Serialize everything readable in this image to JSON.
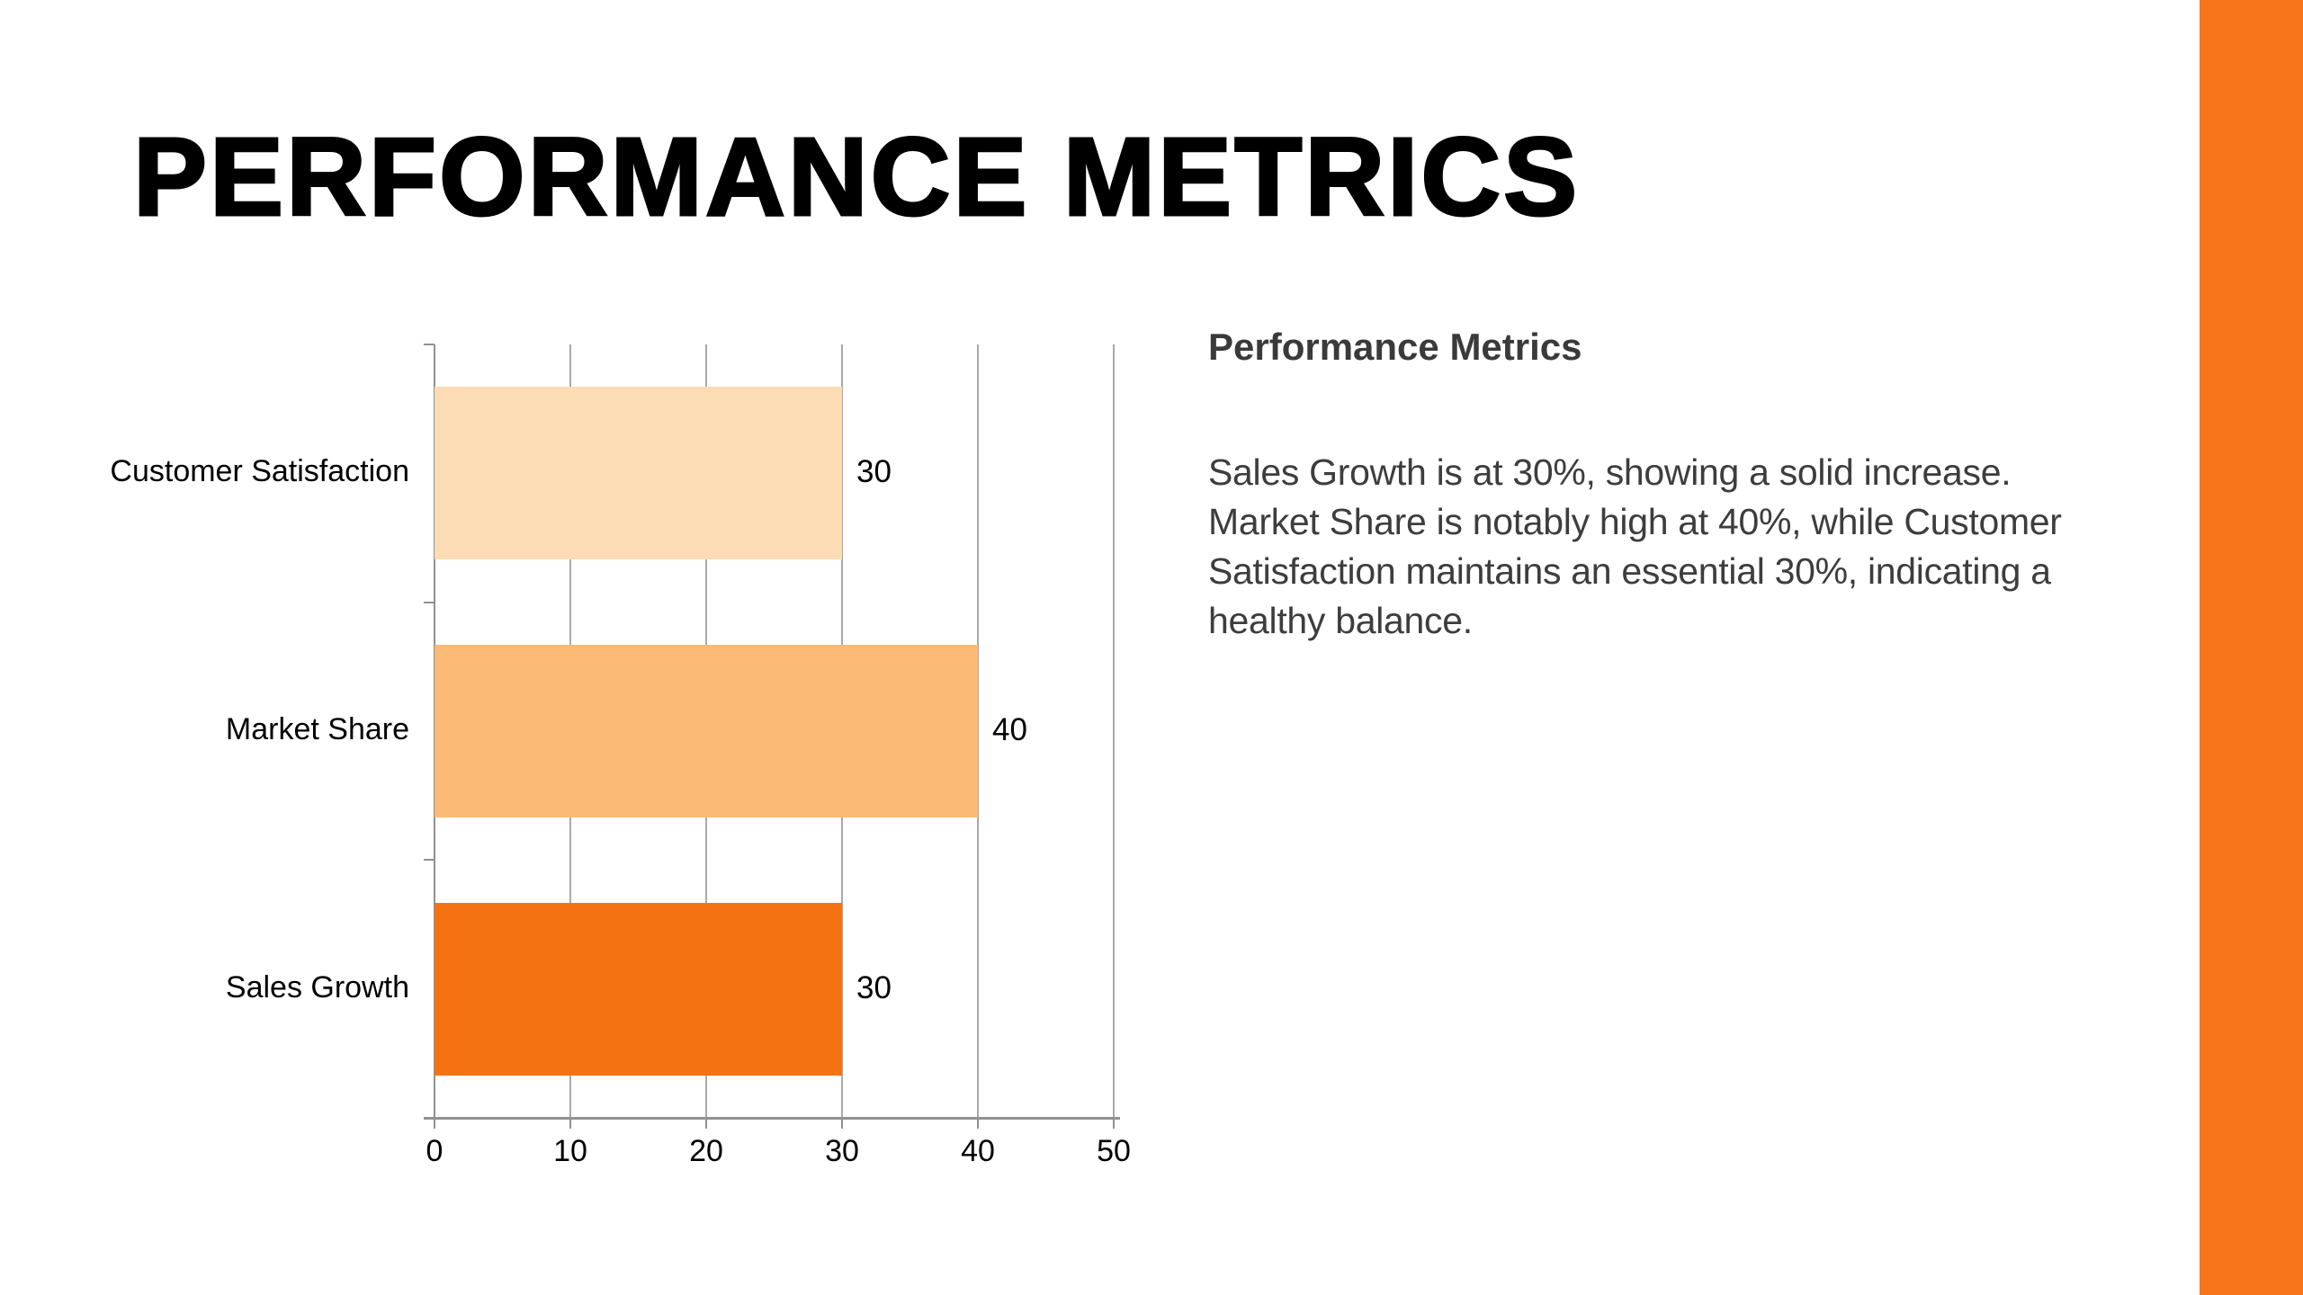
{
  "slide": {
    "title": "PERFORMANCE METRICS"
  },
  "chart_data": {
    "type": "bar",
    "orientation": "horizontal",
    "title": "",
    "xlabel": "",
    "ylabel": "",
    "categories": [
      "Customer Satisfaction",
      "Market Share",
      "Sales Growth"
    ],
    "values": [
      30,
      40,
      30
    ],
    "data_labels": [
      "30",
      "40",
      "30"
    ],
    "bar_colors": [
      "#FCDCB5",
      "#FBBA75",
      "#F57212"
    ],
    "x_ticks": [
      "0",
      "10",
      "20",
      "30",
      "40",
      "50"
    ],
    "xlim": [
      0,
      50
    ],
    "grid": true,
    "gridline_color": "#A9A9A9",
    "legend": "none"
  },
  "text_panel": {
    "heading": "Performance Metrics",
    "paragraph_lines": [
      "Sales Growth is at 30%, showing a solid increase.",
      "Market Share is notably high at 40%, while Customer",
      "Satisfaction maintains an essential 30%, indicating a",
      "healthy balance."
    ]
  },
  "accents": {
    "stripe_color": "#F77419"
  }
}
